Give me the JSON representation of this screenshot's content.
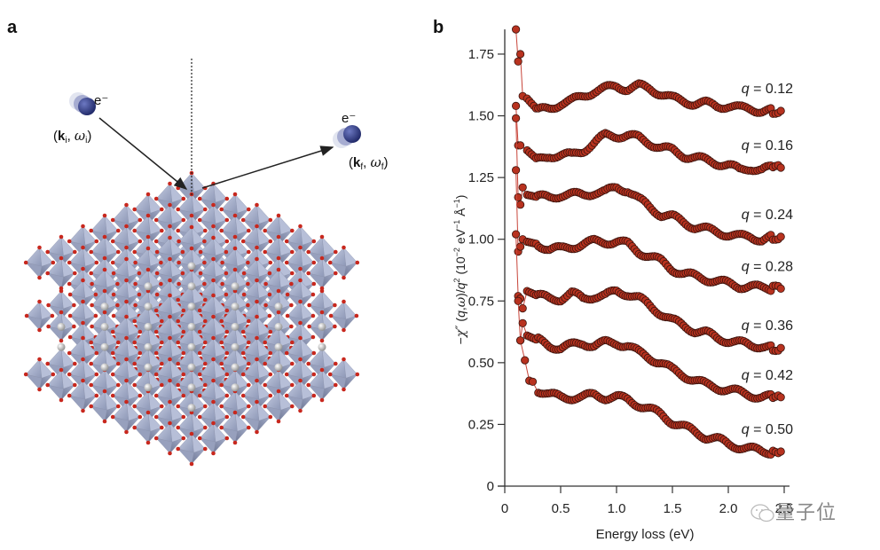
{
  "panels": {
    "a": {
      "label": "a",
      "incident_electron": {
        "symbol": "e⁻",
        "label_k": "k",
        "label_k_sub": "i",
        "label_omega": "ω",
        "label_omega_sub": "i"
      },
      "scattered_electron": {
        "symbol": "e⁻",
        "label_k": "k",
        "label_k_sub": "f",
        "label_omega": "ω",
        "label_omega_sub": "f"
      },
      "colors": {
        "electron": "#2e3a80",
        "octahedron": "#aab4cf",
        "oxygen": "#c8281e",
        "cation": "#d8d8d8"
      }
    },
    "b": {
      "label": "b"
    }
  },
  "watermark": {
    "text": "量子位",
    "icon": "wechat-icon"
  },
  "chart_data": {
    "type": "scatter",
    "title": "",
    "xlabel": "Energy loss (eV)",
    "ylabel": "−χ″ (q,ω)/q² (10⁻² eV⁻¹ Å⁻¹)",
    "xlim": [
      0,
      2.5
    ],
    "ylim": [
      0,
      1.85
    ],
    "xticks": [
      "0",
      "0.5",
      "1.0",
      "1.5",
      "2.0",
      "2.5"
    ],
    "xtick_values": [
      0,
      0.5,
      1.0,
      1.5,
      2.0,
      2.5
    ],
    "yticks": [
      "0",
      "0.25",
      "0.50",
      "0.75",
      "1.00",
      "1.25",
      "1.50",
      "1.75"
    ],
    "ytick_values": [
      0,
      0.25,
      0.5,
      0.75,
      1.0,
      1.25,
      1.5,
      1.75
    ],
    "grid": false,
    "marker_color": "#b8321f",
    "line_color": "#c8453a",
    "series": [
      {
        "name": "q = 0.12",
        "q": "0.12",
        "x": [
          0.1,
          0.12,
          0.14,
          0.16,
          0.2,
          0.3,
          0.4,
          0.5,
          0.6,
          0.7,
          0.8,
          0.9,
          1.0,
          1.1,
          1.2,
          1.3,
          1.4,
          1.5,
          1.6,
          1.7,
          1.8,
          1.9,
          2.0,
          2.1,
          2.2,
          2.3,
          2.4,
          2.47
        ],
        "y": [
          1.85,
          1.72,
          1.75,
          1.58,
          1.57,
          1.52,
          1.53,
          1.55,
          1.56,
          1.58,
          1.6,
          1.61,
          1.62,
          1.61,
          1.62,
          1.61,
          1.59,
          1.57,
          1.56,
          1.55,
          1.55,
          1.54,
          1.54,
          1.53,
          1.53,
          1.52,
          1.52,
          1.52
        ]
      },
      {
        "name": "q = 0.16",
        "q": "0.16",
        "x": [
          0.1,
          0.12,
          0.14,
          0.2,
          0.3,
          0.4,
          0.5,
          0.6,
          0.7,
          0.8,
          0.9,
          1.0,
          1.1,
          1.2,
          1.3,
          1.4,
          1.5,
          1.6,
          1.7,
          1.8,
          1.9,
          2.0,
          2.1,
          2.2,
          2.3,
          2.4,
          2.47
        ],
        "y": [
          1.54,
          1.38,
          1.38,
          1.36,
          1.32,
          1.34,
          1.34,
          1.34,
          1.36,
          1.39,
          1.42,
          1.42,
          1.42,
          1.41,
          1.39,
          1.37,
          1.36,
          1.34,
          1.33,
          1.32,
          1.31,
          1.3,
          1.28,
          1.29,
          1.28,
          1.29,
          1.29
        ]
      },
      {
        "name": "q = 0.24",
        "q": "0.24",
        "x": [
          0.1,
          0.12,
          0.14,
          0.16,
          0.2,
          0.3,
          0.4,
          0.5,
          0.6,
          0.7,
          0.8,
          0.9,
          1.0,
          1.1,
          1.2,
          1.3,
          1.4,
          1.5,
          1.6,
          1.7,
          1.8,
          1.9,
          2.0,
          2.1,
          2.2,
          2.3,
          2.4,
          2.47
        ],
        "y": [
          1.49,
          1.17,
          1.14,
          1.21,
          1.18,
          1.17,
          1.17,
          1.18,
          1.18,
          1.18,
          1.19,
          1.19,
          1.21,
          1.2,
          1.16,
          1.13,
          1.1,
          1.09,
          1.07,
          1.05,
          1.04,
          1.03,
          1.02,
          1.01,
          1.01,
          1.0,
          1.01,
          1.01
        ]
      },
      {
        "name": "q = 0.28",
        "q": "0.28",
        "x": [
          0.1,
          0.12,
          0.14,
          0.16,
          0.2,
          0.3,
          0.4,
          0.5,
          0.6,
          0.7,
          0.8,
          0.9,
          1.0,
          1.1,
          1.2,
          1.3,
          1.4,
          1.5,
          1.6,
          1.7,
          1.8,
          1.9,
          2.0,
          2.1,
          2.2,
          2.3,
          2.4,
          2.47
        ],
        "y": [
          1.28,
          0.95,
          0.97,
          1.0,
          0.99,
          0.98,
          0.96,
          0.96,
          0.97,
          0.98,
          0.99,
          0.99,
          0.99,
          0.98,
          0.95,
          0.93,
          0.91,
          0.88,
          0.86,
          0.85,
          0.84,
          0.83,
          0.82,
          0.81,
          0.81,
          0.8,
          0.8,
          0.8
        ]
      },
      {
        "name": "q = 0.36",
        "q": "0.36",
        "x": [
          0.1,
          0.12,
          0.14,
          0.16,
          0.2,
          0.3,
          0.4,
          0.5,
          0.6,
          0.7,
          0.8,
          0.9,
          1.0,
          1.1,
          1.2,
          1.3,
          1.4,
          1.5,
          1.6,
          1.7,
          1.8,
          1.9,
          2.0,
          2.1,
          2.2,
          2.3,
          2.4,
          2.47
        ],
        "y": [
          1.02,
          0.77,
          0.76,
          0.72,
          0.79,
          0.77,
          0.76,
          0.76,
          0.78,
          0.76,
          0.77,
          0.77,
          0.79,
          0.78,
          0.76,
          0.73,
          0.7,
          0.67,
          0.65,
          0.63,
          0.62,
          0.6,
          0.59,
          0.58,
          0.57,
          0.57,
          0.56,
          0.56
        ]
      },
      {
        "name": "q = 0.42",
        "q": "0.42",
        "x": [
          0.12,
          0.14,
          0.16,
          0.2,
          0.3,
          0.4,
          0.5,
          0.6,
          0.7,
          0.8,
          0.9,
          1.0,
          1.1,
          1.2,
          1.3,
          1.4,
          1.5,
          1.6,
          1.7,
          1.8,
          1.9,
          2.0,
          2.1,
          2.2,
          2.3,
          2.4,
          2.47
        ],
        "y": [
          0.75,
          0.59,
          0.66,
          0.61,
          0.59,
          0.57,
          0.56,
          0.57,
          0.58,
          0.57,
          0.58,
          0.58,
          0.57,
          0.54,
          0.52,
          0.5,
          0.47,
          0.45,
          0.43,
          0.41,
          0.4,
          0.39,
          0.38,
          0.37,
          0.36,
          0.36,
          0.36
        ]
      },
      {
        "name": "q = 0.50",
        "q": "0.50",
        "x": [
          0.14,
          0.18,
          0.22,
          0.25,
          0.3,
          0.4,
          0.5,
          0.6,
          0.7,
          0.8,
          0.9,
          1.0,
          1.1,
          1.2,
          1.3,
          1.4,
          1.5,
          1.6,
          1.7,
          1.8,
          1.9,
          2.0,
          2.1,
          2.2,
          2.3,
          2.4,
          2.47
        ],
        "y": [
          0.59,
          0.51,
          0.43,
          0.43,
          0.39,
          0.37,
          0.36,
          0.36,
          0.36,
          0.37,
          0.36,
          0.36,
          0.35,
          0.33,
          0.31,
          0.29,
          0.26,
          0.24,
          0.22,
          0.2,
          0.19,
          0.17,
          0.16,
          0.15,
          0.14,
          0.14,
          0.14
        ]
      }
    ]
  }
}
